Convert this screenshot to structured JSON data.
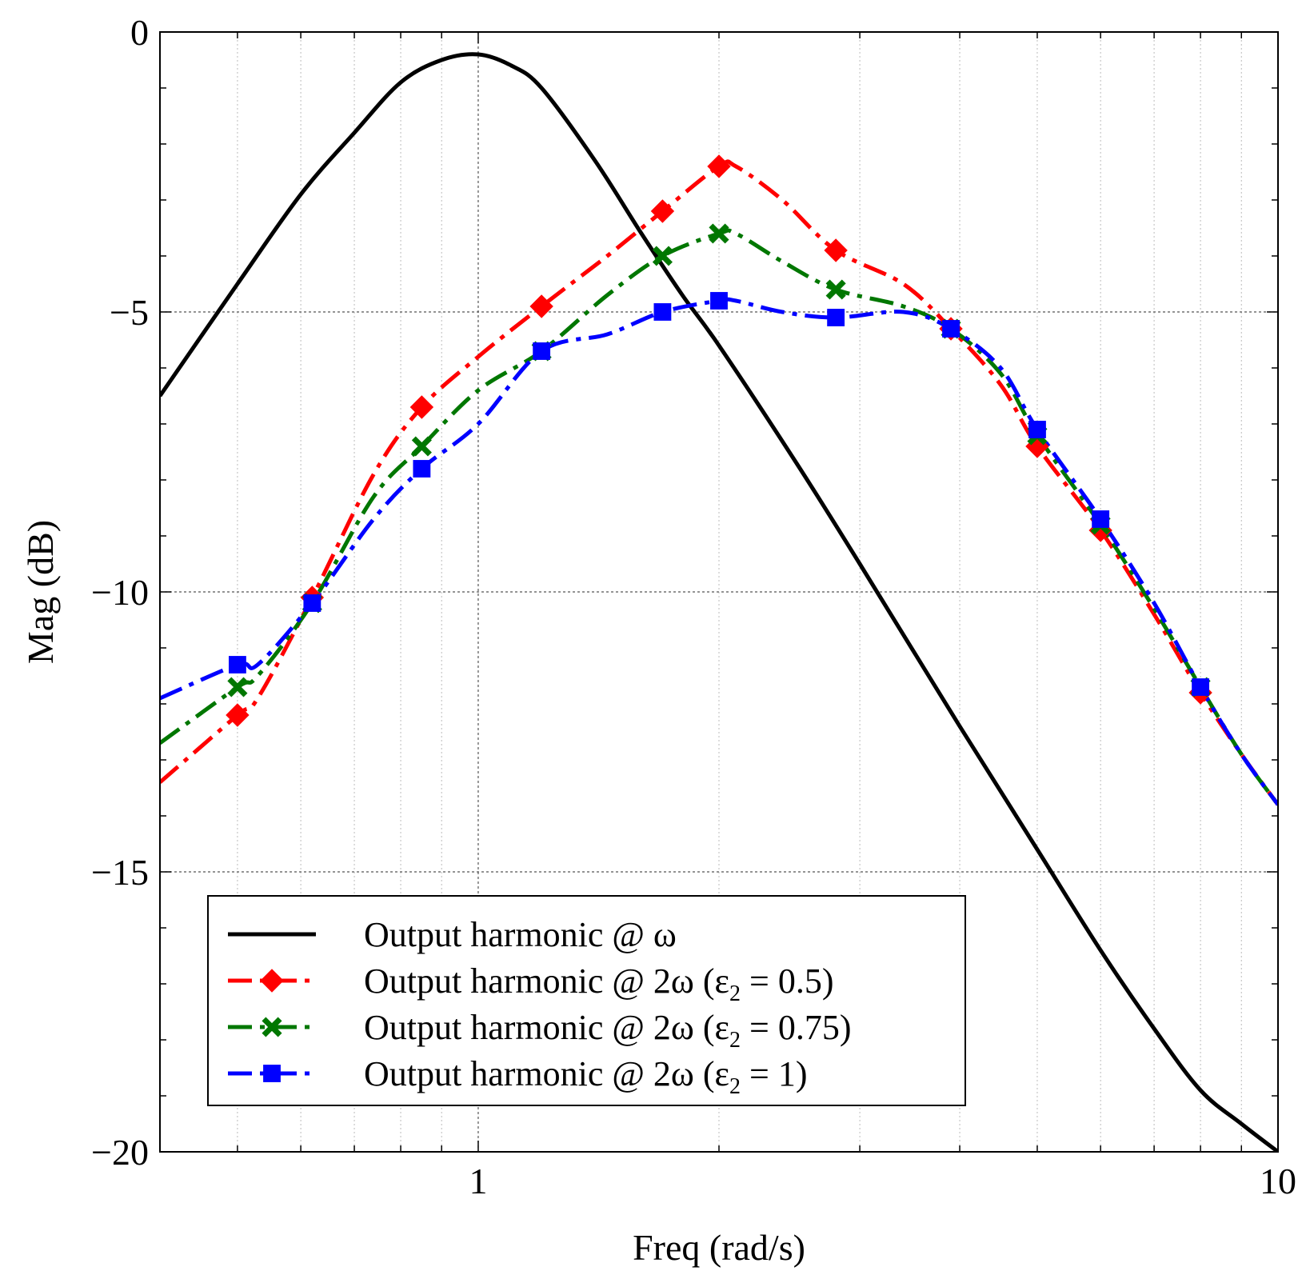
{
  "chart_data": {
    "type": "line",
    "title": "",
    "xlabel": "Freq (rad/s)",
    "ylabel": "Mag (dB)",
    "xscale": "log",
    "xlim": [
      0.4,
      10
    ],
    "ylim": [
      -20,
      0
    ],
    "xticks": [
      {
        "value": 1,
        "label": "1"
      },
      {
        "value": 10,
        "label": "10"
      }
    ],
    "yticks": [
      {
        "value": 0,
        "label": "0"
      },
      {
        "value": -5,
        "label": "−5"
      },
      {
        "value": -10,
        "label": "−10"
      },
      {
        "value": -15,
        "label": "−15"
      },
      {
        "value": -20,
        "label": "−20"
      }
    ],
    "grid": true,
    "legend_position": "bottom-left",
    "series": [
      {
        "name": "Output harmonic @ ω",
        "legend_main": "Output harmonic @ ω",
        "legend_sub": "",
        "legend_tail": "",
        "color": "#000000",
        "linestyle": "solid",
        "marker": "none",
        "x": [
          0.4,
          0.5,
          0.6,
          0.7,
          0.8,
          0.9,
          1.0,
          1.1,
          1.2,
          1.4,
          1.6,
          1.8,
          2.0,
          2.5,
          3.0,
          4.0,
          5.0,
          6.0,
          7.0,
          8.0,
          9.0,
          10.0
        ],
        "y": [
          -6.5,
          -4.5,
          -2.9,
          -1.8,
          -0.9,
          -0.5,
          -0.4,
          -0.6,
          -1.0,
          -2.3,
          -3.6,
          -4.7,
          -5.6,
          -7.7,
          -9.5,
          -12.4,
          -14.6,
          -16.4,
          -17.8,
          -18.9,
          -19.5,
          -20.0
        ]
      },
      {
        "name": "Output harmonic @ 2ω (ε₂ = 0.5)",
        "legend_main": "Output harmonic @ 2ω (ε",
        "legend_sub": "2",
        "legend_tail": " = 0.5)",
        "color": "#ff0000",
        "linestyle": "dashdot",
        "marker": "diamond",
        "x": [
          0.4,
          0.5,
          0.53,
          0.62,
          0.74,
          0.85,
          1.0,
          1.2,
          1.45,
          1.7,
          2.0,
          2.1,
          2.4,
          2.8,
          3.4,
          3.9,
          4.5,
          5.0,
          6.0,
          7.0,
          8.0,
          9.0,
          10.0
        ],
        "y": [
          -13.4,
          -12.2,
          -11.9,
          -10.1,
          -7.9,
          -6.7,
          -5.8,
          -4.9,
          -4.0,
          -3.2,
          -2.4,
          -2.4,
          -3.0,
          -3.9,
          -4.5,
          -5.3,
          -6.3,
          -7.4,
          -8.9,
          -10.4,
          -11.8,
          -12.9,
          -13.8
        ]
      },
      {
        "name": "Output harmonic @ 2ω (ε₂ = 0.75)",
        "legend_main": "Output harmonic @ 2ω (ε",
        "legend_sub": "2",
        "legend_tail": " = 0.75)",
        "color": "#007700",
        "linestyle": "dashdot",
        "marker": "x",
        "x": [
          0.4,
          0.5,
          0.53,
          0.62,
          0.74,
          0.85,
          1.0,
          1.2,
          1.45,
          1.7,
          2.0,
          2.1,
          2.4,
          2.8,
          3.4,
          3.9,
          4.5,
          5.0,
          6.0,
          7.0,
          8.0,
          9.0,
          10.0
        ],
        "y": [
          -12.7,
          -11.7,
          -11.5,
          -10.2,
          -8.3,
          -7.4,
          -6.4,
          -5.7,
          -4.7,
          -4.0,
          -3.6,
          -3.6,
          -4.1,
          -4.6,
          -4.9,
          -5.3,
          -6.1,
          -7.2,
          -8.8,
          -10.3,
          -11.7,
          -12.9,
          -13.8
        ]
      },
      {
        "name": "Output harmonic @ 2ω (ε₂ = 1)",
        "legend_main": "Output harmonic @ 2ω (ε",
        "legend_sub": "2",
        "legend_tail": " = 1)",
        "color": "#0000ff",
        "linestyle": "dashdot",
        "marker": "square",
        "x": [
          0.4,
          0.5,
          0.53,
          0.62,
          0.74,
          0.85,
          1.0,
          1.2,
          1.45,
          1.7,
          2.0,
          2.1,
          2.4,
          2.8,
          3.4,
          3.9,
          4.5,
          5.0,
          6.0,
          7.0,
          8.0,
          9.0,
          10.0
        ],
        "y": [
          -11.9,
          -11.3,
          -11.3,
          -10.2,
          -8.7,
          -7.8,
          -7.0,
          -5.7,
          -5.4,
          -5.0,
          -4.8,
          -4.8,
          -5.0,
          -5.1,
          -5.0,
          -5.3,
          -6.0,
          -7.1,
          -8.7,
          -10.2,
          -11.7,
          -12.9,
          -13.8
        ]
      }
    ]
  }
}
